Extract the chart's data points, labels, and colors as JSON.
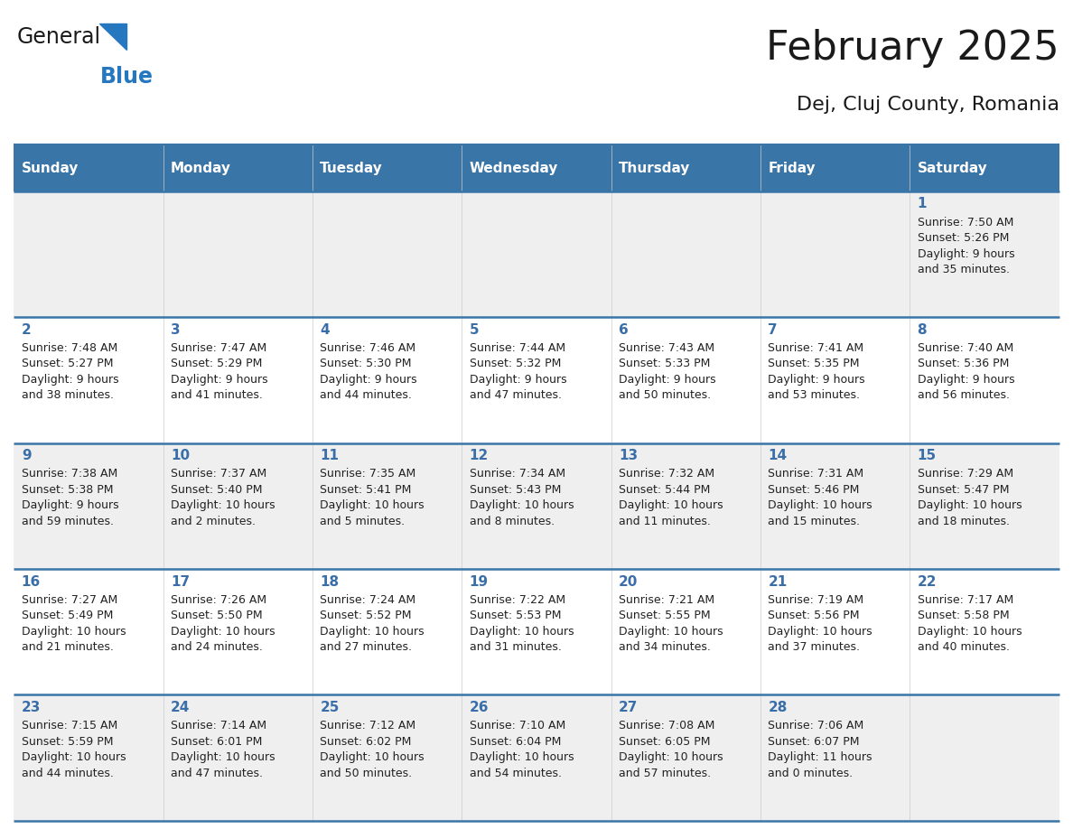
{
  "title": "February 2025",
  "subtitle": "Dej, Cluj County, Romania",
  "header_bg": "#3a75a8",
  "header_text_color": "#ffffff",
  "day_names": [
    "Sunday",
    "Monday",
    "Tuesday",
    "Wednesday",
    "Thursday",
    "Friday",
    "Saturday"
  ],
  "title_color": "#1a1a1a",
  "subtitle_color": "#1a1a1a",
  "cell_bg_odd": "#efefef",
  "cell_bg_even": "#ffffff",
  "day_num_color": "#3a6ea8",
  "info_color": "#222222",
  "border_color": "#3a75a8",
  "logo_general_color": "#1a1a1a",
  "logo_blue_color": "#2577c0",
  "title_fontsize": 32,
  "subtitle_fontsize": 16,
  "header_fontsize": 11,
  "day_num_fontsize": 11,
  "info_fontsize": 9,
  "weeks": [
    [
      null,
      null,
      null,
      null,
      null,
      null,
      {
        "day": "1",
        "sunrise": "7:50 AM",
        "sunset": "5:26 PM",
        "daylight": "9 hours\nand 35 minutes."
      }
    ],
    [
      {
        "day": "2",
        "sunrise": "7:48 AM",
        "sunset": "5:27 PM",
        "daylight": "9 hours\nand 38 minutes."
      },
      {
        "day": "3",
        "sunrise": "7:47 AM",
        "sunset": "5:29 PM",
        "daylight": "9 hours\nand 41 minutes."
      },
      {
        "day": "4",
        "sunrise": "7:46 AM",
        "sunset": "5:30 PM",
        "daylight": "9 hours\nand 44 minutes."
      },
      {
        "day": "5",
        "sunrise": "7:44 AM",
        "sunset": "5:32 PM",
        "daylight": "9 hours\nand 47 minutes."
      },
      {
        "day": "6",
        "sunrise": "7:43 AM",
        "sunset": "5:33 PM",
        "daylight": "9 hours\nand 50 minutes."
      },
      {
        "day": "7",
        "sunrise": "7:41 AM",
        "sunset": "5:35 PM",
        "daylight": "9 hours\nand 53 minutes."
      },
      {
        "day": "8",
        "sunrise": "7:40 AM",
        "sunset": "5:36 PM",
        "daylight": "9 hours\nand 56 minutes."
      }
    ],
    [
      {
        "day": "9",
        "sunrise": "7:38 AM",
        "sunset": "5:38 PM",
        "daylight": "9 hours\nand 59 minutes."
      },
      {
        "day": "10",
        "sunrise": "7:37 AM",
        "sunset": "5:40 PM",
        "daylight": "10 hours\nand 2 minutes."
      },
      {
        "day": "11",
        "sunrise": "7:35 AM",
        "sunset": "5:41 PM",
        "daylight": "10 hours\nand 5 minutes."
      },
      {
        "day": "12",
        "sunrise": "7:34 AM",
        "sunset": "5:43 PM",
        "daylight": "10 hours\nand 8 minutes."
      },
      {
        "day": "13",
        "sunrise": "7:32 AM",
        "sunset": "5:44 PM",
        "daylight": "10 hours\nand 11 minutes."
      },
      {
        "day": "14",
        "sunrise": "7:31 AM",
        "sunset": "5:46 PM",
        "daylight": "10 hours\nand 15 minutes."
      },
      {
        "day": "15",
        "sunrise": "7:29 AM",
        "sunset": "5:47 PM",
        "daylight": "10 hours\nand 18 minutes."
      }
    ],
    [
      {
        "day": "16",
        "sunrise": "7:27 AM",
        "sunset": "5:49 PM",
        "daylight": "10 hours\nand 21 minutes."
      },
      {
        "day": "17",
        "sunrise": "7:26 AM",
        "sunset": "5:50 PM",
        "daylight": "10 hours\nand 24 minutes."
      },
      {
        "day": "18",
        "sunrise": "7:24 AM",
        "sunset": "5:52 PM",
        "daylight": "10 hours\nand 27 minutes."
      },
      {
        "day": "19",
        "sunrise": "7:22 AM",
        "sunset": "5:53 PM",
        "daylight": "10 hours\nand 31 minutes."
      },
      {
        "day": "20",
        "sunrise": "7:21 AM",
        "sunset": "5:55 PM",
        "daylight": "10 hours\nand 34 minutes."
      },
      {
        "day": "21",
        "sunrise": "7:19 AM",
        "sunset": "5:56 PM",
        "daylight": "10 hours\nand 37 minutes."
      },
      {
        "day": "22",
        "sunrise": "7:17 AM",
        "sunset": "5:58 PM",
        "daylight": "10 hours\nand 40 minutes."
      }
    ],
    [
      {
        "day": "23",
        "sunrise": "7:15 AM",
        "sunset": "5:59 PM",
        "daylight": "10 hours\nand 44 minutes."
      },
      {
        "day": "24",
        "sunrise": "7:14 AM",
        "sunset": "6:01 PM",
        "daylight": "10 hours\nand 47 minutes."
      },
      {
        "day": "25",
        "sunrise": "7:12 AM",
        "sunset": "6:02 PM",
        "daylight": "10 hours\nand 50 minutes."
      },
      {
        "day": "26",
        "sunrise": "7:10 AM",
        "sunset": "6:04 PM",
        "daylight": "10 hours\nand 54 minutes."
      },
      {
        "day": "27",
        "sunrise": "7:08 AM",
        "sunset": "6:05 PM",
        "daylight": "10 hours\nand 57 minutes."
      },
      {
        "day": "28",
        "sunrise": "7:06 AM",
        "sunset": "6:07 PM",
        "daylight": "11 hours\nand 0 minutes."
      },
      null
    ]
  ]
}
